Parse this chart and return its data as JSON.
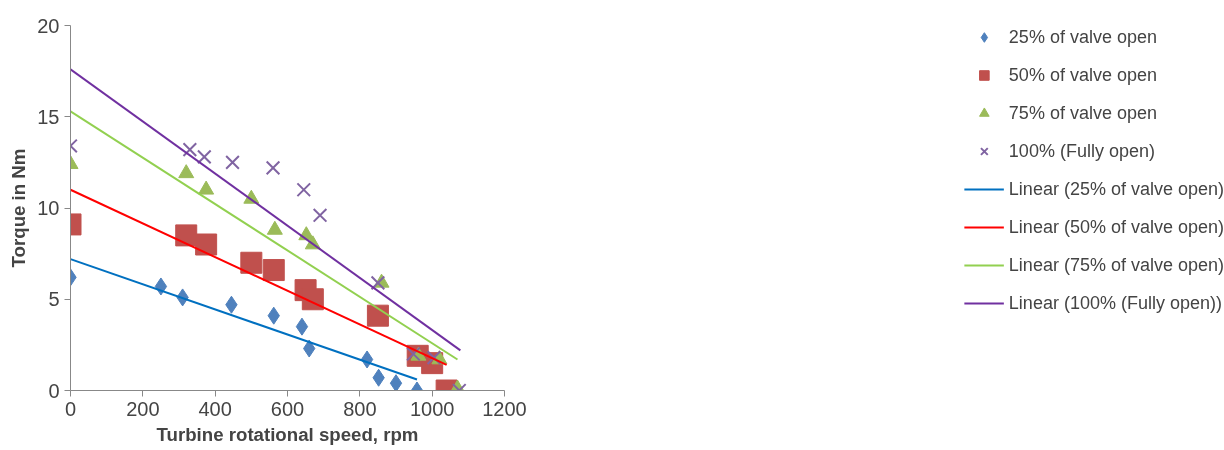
{
  "chart_data": {
    "type": "scatter",
    "xlabel": "Turbine rotational speed, rpm",
    "ylabel": "Torque in Nm",
    "xlim": [
      0,
      1200
    ],
    "ylim": [
      0,
      20
    ],
    "xticks": [
      0,
      200,
      400,
      600,
      800,
      1000,
      1200
    ],
    "yticks": [
      0,
      5,
      10,
      15,
      20
    ],
    "grid": false,
    "legend": "right",
    "series": [
      {
        "name": "25% of valve open",
        "color": "#4f81bd",
        "marker": "diamond",
        "x": [
          0,
          250,
          310,
          445,
          562,
          640,
          660,
          820,
          852,
          900,
          958
        ],
        "values": [
          6.2,
          5.7,
          5.1,
          4.7,
          4.1,
          3.5,
          2.3,
          1.7,
          0.7,
          0.4,
          0
        ]
      },
      {
        "name": "50% of valve open",
        "color": "#c0504d",
        "marker": "square",
        "x": [
          0,
          320,
          375,
          500,
          562,
          650,
          670,
          850,
          960,
          1000,
          1040
        ],
        "values": [
          9.1,
          8.5,
          8.0,
          7.0,
          6.6,
          5.5,
          5.0,
          4.1,
          1.9,
          1.5,
          0
        ]
      },
      {
        "name": "75% of valve open",
        "color": "#9bbb59",
        "marker": "triangle",
        "x": [
          0,
          320,
          375,
          500,
          565,
          652,
          670,
          860,
          962,
          1020,
          1070
        ],
        "values": [
          12.4,
          11.9,
          11.0,
          10.5,
          8.8,
          8.5,
          8.0,
          5.9,
          1.9,
          1.7,
          0.1
        ]
      },
      {
        "name": "100% (Fully open)",
        "color": "#8064a2",
        "marker": "cross",
        "x": [
          0,
          330,
          370,
          448,
          560,
          645,
          690,
          850,
          948,
          1005,
          1075
        ],
        "values": [
          13.4,
          13.2,
          12.8,
          12.5,
          12.2,
          11.0,
          9.6,
          5.9,
          2.0,
          1.8,
          0
        ]
      },
      {
        "name": "Linear (25% of valve open)",
        "type": "line",
        "color": "#0070c0",
        "x": [
          0,
          958
        ],
        "values": [
          7.2,
          0.6
        ]
      },
      {
        "name": "Linear (50% of valve open)",
        "type": "line",
        "color": "#ff0000",
        "x": [
          0,
          1040
        ],
        "values": [
          11.0,
          1.4
        ]
      },
      {
        "name": "Linear (75% of valve open)",
        "type": "line",
        "color": "#92d050",
        "x": [
          0,
          1070
        ],
        "values": [
          15.3,
          1.7
        ]
      },
      {
        "name": "Linear (100% (Fully open))",
        "type": "line",
        "color": "#7030a0",
        "x": [
          0,
          1078
        ],
        "values": [
          17.6,
          2.2
        ]
      }
    ]
  }
}
